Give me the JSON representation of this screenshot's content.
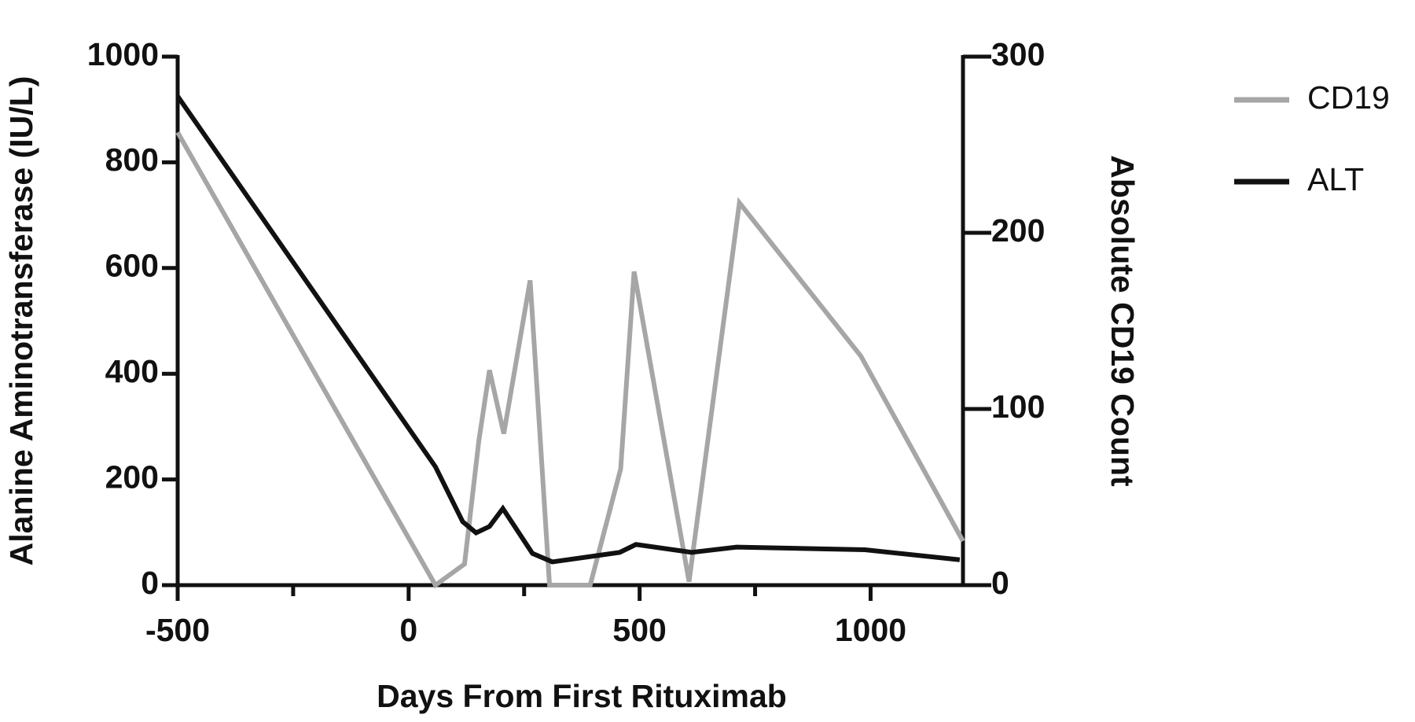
{
  "chart_data": {
    "type": "line",
    "xlabel": "Days From First Rituximab",
    "ylabel": "Alanine Aminotransferase (IU/L)",
    "y2label": "Absolute CD19 Count",
    "xlim": [
      -500,
      1200
    ],
    "xticks": [
      -500,
      0,
      500,
      1000
    ],
    "xminorticks": [
      -250,
      250,
      750
    ],
    "ylim": [
      0,
      1000
    ],
    "yticks": [
      0,
      200,
      400,
      600,
      800,
      1000
    ],
    "y2lim": [
      0,
      300
    ],
    "y2ticks": [
      0,
      100,
      200,
      300
    ],
    "series": [
      {
        "name": "CD19",
        "color": "#a6a6a6",
        "axis": "y2",
        "x": [
          -500,
          58,
          121,
          152,
          175,
          206,
          263,
          305,
          393,
          459,
          488,
          607,
          716,
          979,
          1200
        ],
        "values": [
          257,
          0,
          12,
          82,
          122,
          86,
          173,
          0,
          0,
          66,
          178,
          2,
          217,
          130,
          25
        ]
      },
      {
        "name": "ALT",
        "color": "#111111",
        "x": [
          -500,
          58,
          117,
          146,
          175,
          204,
          268,
          311,
          457,
          492,
          613,
          710,
          988,
          1193
        ],
        "values": [
          925,
          224,
          120,
          99,
          111,
          145,
          60,
          44,
          62,
          77,
          62,
          72,
          67,
          48
        ]
      }
    ]
  }
}
